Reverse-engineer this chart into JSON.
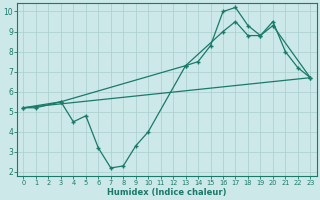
{
  "xlabel": "Humidex (Indice chaleur)",
  "bg_color": "#cce8e8",
  "grid_color": "#aacece",
  "line_color": "#1a7a6a",
  "xlim": [
    -0.5,
    23.5
  ],
  "ylim": [
    1.8,
    10.4
  ],
  "yticks": [
    2,
    3,
    4,
    5,
    6,
    7,
    8,
    9,
    10
  ],
  "xticks": [
    0,
    1,
    2,
    3,
    4,
    5,
    6,
    7,
    8,
    9,
    10,
    11,
    12,
    13,
    14,
    15,
    16,
    17,
    18,
    19,
    20,
    21,
    22,
    23
  ],
  "line1_x": [
    0,
    1,
    3,
    4,
    5,
    6,
    7,
    8,
    9,
    10,
    13,
    14,
    15,
    16,
    17,
    18,
    19,
    20,
    21,
    22,
    23
  ],
  "line1_y": [
    5.2,
    5.2,
    5.5,
    4.5,
    4.8,
    3.2,
    2.2,
    2.3,
    3.3,
    4.0,
    7.3,
    7.5,
    8.3,
    10.0,
    10.2,
    9.3,
    8.8,
    9.5,
    8.0,
    7.2,
    6.7
  ],
  "line2_x": [
    0,
    3,
    13,
    16,
    17,
    18,
    19,
    20,
    23
  ],
  "line2_y": [
    5.2,
    5.5,
    7.3,
    9.0,
    9.5,
    8.8,
    8.8,
    9.3,
    6.7
  ],
  "line3_x": [
    0,
    23
  ],
  "line3_y": [
    5.2,
    6.7
  ]
}
